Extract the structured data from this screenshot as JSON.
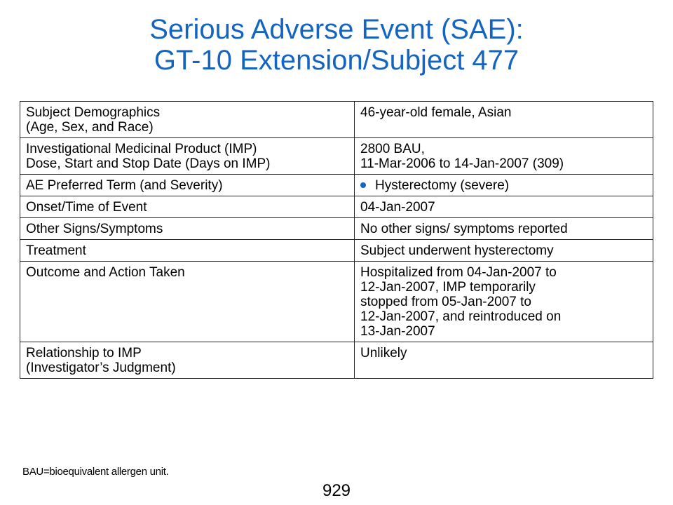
{
  "title": {
    "line1": "Serious Adverse Event (SAE):",
    "line2": "GT-10 Extension/Subject 477"
  },
  "table": {
    "rows": [
      {
        "label_lines": [
          "Subject Demographics",
          "(Age, Sex, and Race)"
        ],
        "value_lines": [
          "46-year-old female, Asian"
        ]
      },
      {
        "label_lines": [
          "Investigational Medicinal Product (IMP)",
          "Dose, Start and Stop Date (Days on IMP)"
        ],
        "value_lines": [
          "2800 BAU,",
          "11-Mar-2006 to 14-Jan-2007 (309)"
        ]
      },
      {
        "label_lines": [
          "AE Preferred Term (and Severity)"
        ],
        "value_lines": [
          "Hysterectomy (severe)"
        ]
      },
      {
        "label_lines": [
          "Onset/Time of Event"
        ],
        "value_lines": [
          "04-Jan-2007"
        ]
      },
      {
        "label_lines": [
          "Other Signs/Symptoms"
        ],
        "value_lines": [
          "No other signs/ symptoms reported"
        ]
      },
      {
        "label_lines": [
          "Treatment"
        ],
        "value_lines": [
          "Subject underwent hysterectomy"
        ]
      },
      {
        "label_lines": [
          "Outcome and Action Taken"
        ],
        "value_lines": [
          "Hospitalized from 04-Jan-2007 to",
          "12-Jan-2007, IMP temporarily",
          "stopped from 05-Jan-2007 to",
          "12-Jan-2007, and reintroduced on",
          "13-Jan-2007"
        ]
      },
      {
        "label_lines": [
          "Relationship to IMP",
          "(Investigator’s Judgment)"
        ],
        "value_lines": [
          "Unlikely"
        ]
      }
    ]
  },
  "footnote": "BAU=bioequivalent allergen unit.",
  "page_number": "929",
  "colors": {
    "title": "#1565C0",
    "bullet": "#1565C0",
    "border": "#222222"
  },
  "icons": {
    "bullet": "bullet-icon"
  }
}
